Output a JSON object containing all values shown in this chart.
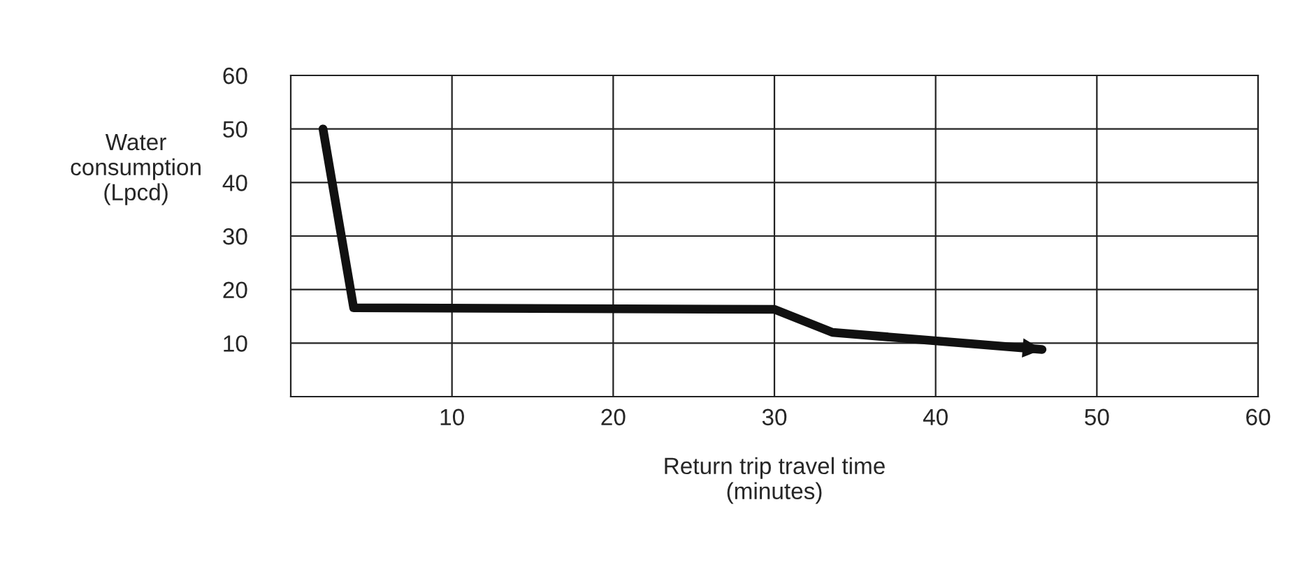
{
  "chart_data": {
    "type": "line",
    "xlabel": "Return trip travel time\n(minutes)",
    "ylabel": "Water\nconsumption\n(Lpcd)",
    "series": [
      {
        "color": "#111111",
        "x": [
          2,
          3.9,
          30,
          33.6,
          46.6
        ],
        "values": [
          50,
          16.6,
          16.3,
          12,
          8.8
        ]
      }
    ],
    "xlim": [
      0,
      60
    ],
    "ylim": [
      0,
      60
    ],
    "xticks": [
      10,
      20,
      30,
      40,
      50,
      60
    ],
    "yticks": [
      10,
      20,
      30,
      40,
      50,
      60
    ],
    "grid": true,
    "marker": "none",
    "line_style": "solid"
  }
}
